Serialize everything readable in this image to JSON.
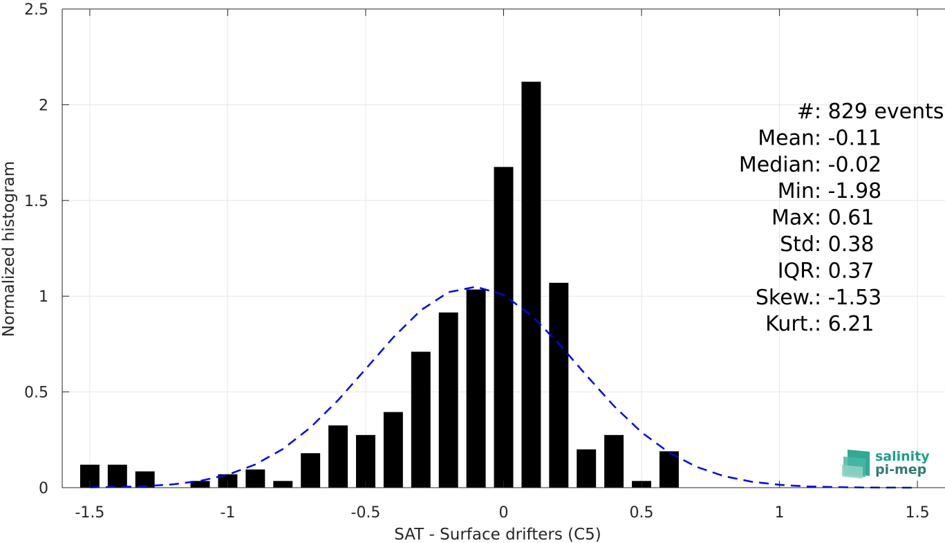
{
  "chart_data": {
    "type": "bar",
    "xlabel": "SAT - Surface drifters (C5)",
    "ylabel": "Normalized histogram",
    "xlim": [
      -1.6,
      1.6
    ],
    "ylim": [
      0,
      2.5
    ],
    "xticks": [
      -1.5,
      -1,
      -0.5,
      0,
      0.5,
      1,
      1.5
    ],
    "xtick_labels": [
      "-1.5",
      "-1",
      "-0.5",
      "0",
      "0.5",
      "1",
      "1.5"
    ],
    "yticks": [
      0,
      0.5,
      1,
      1.5,
      2,
      2.5
    ],
    "ytick_labels": [
      "0",
      "0.5",
      "1",
      "1.5",
      "2",
      "2.5"
    ],
    "grid": true,
    "bar_color": "#000000",
    "bin_width": 0.1,
    "bins": [
      {
        "x": -1.5,
        "value": 0.12
      },
      {
        "x": -1.4,
        "value": 0.12
      },
      {
        "x": -1.3,
        "value": 0.085
      },
      {
        "x": -1.1,
        "value": 0.035
      },
      {
        "x": -1.0,
        "value": 0.07
      },
      {
        "x": -0.9,
        "value": 0.095
      },
      {
        "x": -0.8,
        "value": 0.035
      },
      {
        "x": -0.7,
        "value": 0.18
      },
      {
        "x": -0.6,
        "value": 0.325
      },
      {
        "x": -0.5,
        "value": 0.275
      },
      {
        "x": -0.4,
        "value": 0.395
      },
      {
        "x": -0.3,
        "value": 0.71
      },
      {
        "x": -0.2,
        "value": 0.915
      },
      {
        "x": -0.1,
        "value": 1.035
      },
      {
        "x": 0.0,
        "value": 1.675
      },
      {
        "x": 0.1,
        "value": 2.12
      },
      {
        "x": 0.2,
        "value": 1.07
      },
      {
        "x": 0.3,
        "value": 0.2
      },
      {
        "x": 0.4,
        "value": 0.275
      },
      {
        "x": 0.5,
        "value": 0.035
      },
      {
        "x": 0.6,
        "value": 0.19
      }
    ],
    "fit_curve": {
      "style": "dashed",
      "color": "#0000ff",
      "mean": -0.11,
      "std": 0.38,
      "x_range": [
        -1.5,
        1.5
      ]
    },
    "annotations": [
      {
        "label": "#  ",
        "value": ": 829 events"
      },
      {
        "label": "Mean ",
        "value": ": -0.11"
      },
      {
        "label": "Median ",
        "value": ": -0.02"
      },
      {
        "label": "Min ",
        "value": ": -1.98"
      },
      {
        "label": "Max ",
        "value": ": 0.61"
      },
      {
        "label": "Std ",
        "value": ": 0.38"
      },
      {
        "label": "IQR ",
        "value": ": 0.37"
      },
      {
        "label": "Skew. ",
        "value": ": -1.53"
      },
      {
        "label": "Kurt. ",
        "value": ": 6.21"
      }
    ]
  },
  "logo": {
    "line1": "salinity",
    "line2": "pi-mep",
    "color_primary": "#1aa08a",
    "color_secondary": "#2e7d74"
  }
}
